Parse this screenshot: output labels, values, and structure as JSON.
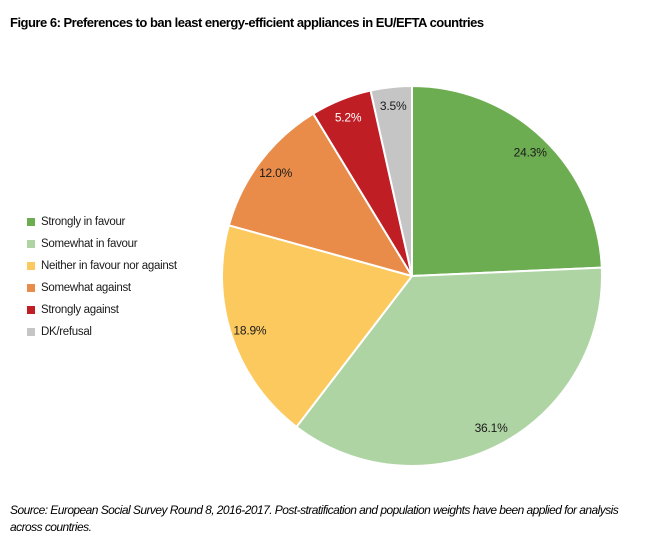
{
  "title": "Figure 6: Preferences to ban least energy-efficient appliances in EU/EFTA countries",
  "source": "Source: European Social Survey Round 8, 2016-2017. Post-stratification and population weights have been applied for analysis across countries.",
  "chart_data": {
    "type": "pie",
    "title": "Figure 6: Preferences to ban least energy-efficient appliances in EU/EFTA countries",
    "start_angle_deg": 0,
    "direction": "clockwise",
    "legend_position": "left",
    "slice_border_color": "#ffffff",
    "slices": [
      {
        "name": "Strongly in favour",
        "value": 24.3,
        "label": "24.3%",
        "color": "#6dad52",
        "label_color": "#1a1a1a"
      },
      {
        "name": "Somewhat in favour",
        "value": 36.1,
        "label": "36.1%",
        "color": "#aed4a4",
        "label_color": "#1a1a1a"
      },
      {
        "name": "Neither in favour nor against",
        "value": 18.9,
        "label": "18.9%",
        "color": "#fcc95f",
        "label_color": "#1a1a1a"
      },
      {
        "name": "Somewhat against",
        "value": 12.0,
        "label": "12.0%",
        "color": "#e98c4a",
        "label_color": "#1a1a1a"
      },
      {
        "name": "Strongly against",
        "value": 5.2,
        "label": "5.2%",
        "color": "#c01e25",
        "label_color": "#ffffff"
      },
      {
        "name": "DK/refusal",
        "value": 3.5,
        "label": "3.5%",
        "color": "#c5c5c5",
        "label_color": "#1a1a1a"
      }
    ]
  }
}
